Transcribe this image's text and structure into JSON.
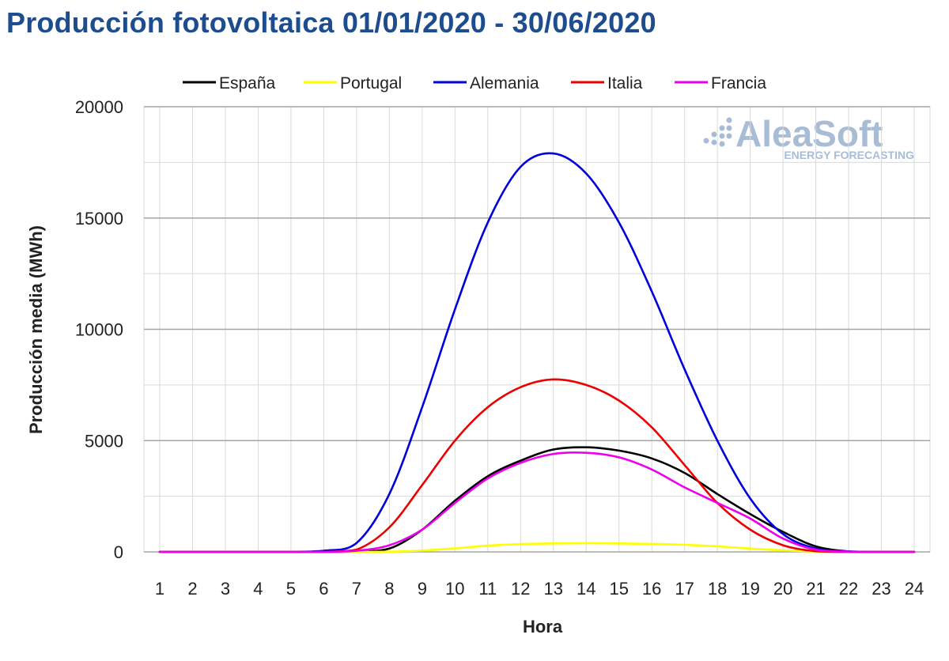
{
  "page": {
    "title": "Producción fotovoltaica 01/01/2020 - 30/06/2020"
  },
  "watermark": {
    "brand": "AleaSoft",
    "tagline": "ENERGY FORECASTING",
    "color": "#a9bcd6"
  },
  "chart_data": {
    "type": "line",
    "title": "Producción fotovoltaica 01/01/2020 - 30/06/2020",
    "xlabel": "Hora",
    "ylabel": "Producción media (MWh)",
    "x": [
      1,
      2,
      3,
      4,
      5,
      6,
      7,
      8,
      9,
      10,
      11,
      12,
      13,
      14,
      15,
      16,
      17,
      18,
      19,
      20,
      21,
      22,
      23,
      24
    ],
    "xlim": [
      1,
      24
    ],
    "ylim": [
      0,
      20000
    ],
    "yticks": [
      0,
      5000,
      10000,
      15000,
      20000
    ],
    "grid": true,
    "smooth": true,
    "legend_position": "top",
    "series": [
      {
        "name": "España",
        "color": "#000000",
        "values": [
          0,
          0,
          0,
          0,
          0,
          0,
          20,
          150,
          1000,
          2300,
          3400,
          4100,
          4600,
          4700,
          4550,
          4200,
          3550,
          2600,
          1700,
          900,
          250,
          20,
          0,
          0
        ]
      },
      {
        "name": "Portugal",
        "color": "#ffff00",
        "values": [
          0,
          0,
          0,
          0,
          0,
          0,
          0,
          10,
          60,
          160,
          280,
          350,
          380,
          390,
          380,
          360,
          320,
          250,
          150,
          70,
          15,
          0,
          0,
          0
        ]
      },
      {
        "name": "Alemania",
        "color": "#0000dd",
        "values": [
          0,
          0,
          0,
          0,
          0,
          50,
          400,
          2600,
          6500,
          10900,
          14800,
          17300,
          17900,
          17000,
          14800,
          11700,
          8200,
          5000,
          2400,
          800,
          150,
          20,
          0,
          0
        ]
      },
      {
        "name": "Italia",
        "color": "#ee0000",
        "values": [
          0,
          0,
          0,
          0,
          0,
          0,
          100,
          1100,
          3000,
          5000,
          6500,
          7400,
          7750,
          7500,
          6800,
          5600,
          3900,
          2200,
          1000,
          300,
          30,
          0,
          0,
          0
        ]
      },
      {
        "name": "Francia",
        "color": "#ee00ee",
        "values": [
          0,
          0,
          0,
          0,
          0,
          0,
          50,
          300,
          1000,
          2200,
          3300,
          4000,
          4400,
          4450,
          4250,
          3700,
          2900,
          2200,
          1500,
          600,
          100,
          10,
          0,
          0
        ]
      }
    ]
  }
}
